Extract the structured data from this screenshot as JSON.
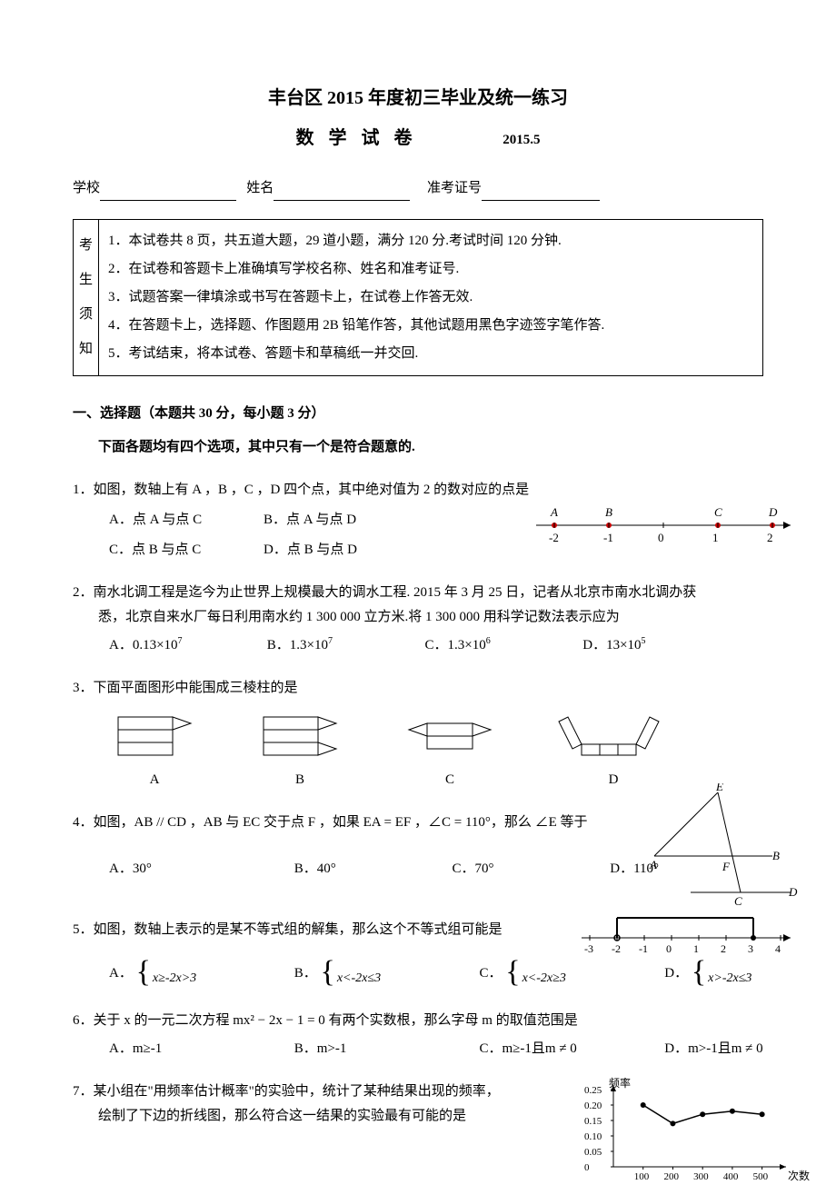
{
  "header": {
    "title": "丰台区 2015 年度初三毕业及统一练习",
    "subtitle": "数学试卷",
    "date": "2015.5",
    "fields": {
      "school": "学校",
      "name": "姓名",
      "idlabel": "准考证号"
    }
  },
  "notice": {
    "side": [
      "考",
      "生",
      "须",
      "知"
    ],
    "items": [
      "1．本试卷共 8 页，共五道大题，29 道小题，满分 120 分.考试时间 120 分钟.",
      "2．在试卷和答题卡上准确填写学校名称、姓名和准考证号.",
      "3．试题答案一律填涂或书写在答题卡上，在试卷上作答无效.",
      "4．在答题卡上，选择题、作图题用 2B 铅笔作答，其他试题用黑色字迹签字笔作答.",
      "5．考试结束，将本试卷、答题卡和草稿纸一并交回."
    ]
  },
  "section1": {
    "title": "一、选择题（本题共 30 分，每小题 3 分）",
    "sub": "下面各题均有四个选项，其中只有一个是符合题意的."
  },
  "q1": {
    "stem": "1．如图，数轴上有 A ，B ，C ，D 四个点，其中绝对值为 2 的数对应的点是",
    "a": "A．点 A 与点 C",
    "b": "B．点 A 与点 D",
    "c": "C．点 B 与点 C",
    "d": "D．点 B 与点 D",
    "axis": {
      "labels": [
        "A",
        "B",
        "C",
        "D"
      ],
      "ticks": [
        "-2",
        "-1",
        "0",
        "1",
        "2"
      ]
    }
  },
  "q2": {
    "stem1": "2．南水北调工程是迄今为止世界上规模最大的调水工程. 2015 年 3 月 25 日，记者从北京市南水北调办获",
    "stem2": "悉，北京自来水厂每日利用南水约 1 300 000 立方米.将 1 300 000 用科学记数法表示应为",
    "a": "A．0.13×10",
    "ae": "7",
    "b": "B．1.3×10",
    "be": "7",
    "c": "C．1.3×10",
    "ce": "6",
    "d": "D．13×10",
    "de": "5"
  },
  "q3": {
    "stem": "3．下面平面图形中能围成三棱柱的是",
    "labels": [
      "A",
      "B",
      "C",
      "D"
    ]
  },
  "q4": {
    "stem": "4．如图，AB // CD ，AB 与 EC 交于点 F ，如果 EA = EF ，∠C = 110°，那么 ∠E 等于",
    "a": "A．30°",
    "b": "B．40°",
    "c": "C．70°",
    "d": "D．110°",
    "fig": {
      "A": "A",
      "B": "B",
      "C": "C",
      "D": "D",
      "E": "E",
      "F": "F"
    }
  },
  "q5": {
    "stem": "5．如图，数轴上表示的是某不等式组的解集，那么这个不等式组可能是",
    "axis_ticks": [
      "-3",
      "-2",
      "-1",
      "0",
      "1",
      "2",
      "3",
      "4"
    ],
    "a_pre": "A．",
    "a1": "x≥-2",
    "a2": "x>3",
    "b_pre": "B．",
    "b1": "x<-2",
    "b2": "x≤3",
    "c_pre": "C．",
    "c1": "x<-2",
    "c2": "x≥3",
    "d_pre": "D．",
    "d1": "x>-2",
    "d2": "x≤3"
  },
  "q6": {
    "stem": "6．关于 x 的一元二次方程 mx² − 2x − 1 = 0 有两个实数根，那么字母 m 的取值范围是",
    "a": "A．m≥-1",
    "b": "B．m>-1",
    "c": "C．m≥-1且m ≠ 0",
    "d": "D．m>-1且m ≠ 0"
  },
  "q7": {
    "stem1": "7．某小组在\"用频率估计概率\"的实验中，统计了某种结果出现的频率，",
    "stem2": "绘制了下边的折线图，那么符合这一结果的实验最有可能的是",
    "chart": {
      "ylabel": "频率",
      "xlabel": "次数",
      "yticks": [
        "0",
        "0.05",
        "0.10",
        "0.15",
        "0.20",
        "0.25"
      ],
      "xticks": [
        "100",
        "200",
        "300",
        "400",
        "500"
      ],
      "points": [
        [
          100,
          0.2
        ],
        [
          200,
          0.14
        ],
        [
          300,
          0.17
        ],
        [
          400,
          0.18
        ],
        [
          500,
          0.17
        ]
      ]
    }
  }
}
